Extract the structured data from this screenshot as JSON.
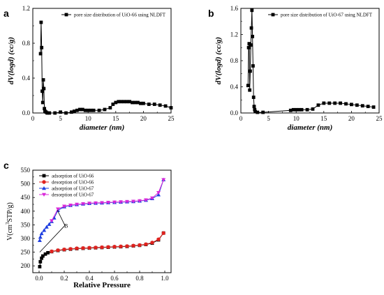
{
  "panels": {
    "a": {
      "letter": "a"
    },
    "b": {
      "letter": "b"
    },
    "c": {
      "letter": "c"
    }
  },
  "chart_data": [
    {
      "panel": "a",
      "type": "line",
      "xlabel": "diameter (nm)",
      "ylabel": "dV(logd) (cc/g)",
      "xlim": [
        0,
        25
      ],
      "ylim": [
        0,
        1.2
      ],
      "xticks": [
        0,
        5,
        10,
        15,
        20,
        25
      ],
      "yticks": [
        0.0,
        0.4,
        0.8,
        1.2
      ],
      "xtick_labels": [
        "0",
        "5",
        "10",
        "15",
        "20",
        "25"
      ],
      "ytick_labels": [
        "0.0",
        "0.4",
        "0.8",
        "1.2"
      ],
      "legend_position": "top-right",
      "series": [
        {
          "name": "pore size distribution of UiO-66 using NLDFT",
          "marker": "square",
          "color": "#000000",
          "x": [
            1.4,
            1.5,
            1.6,
            1.7,
            1.8,
            1.9,
            2.0,
            2.1,
            2.2,
            2.4,
            2.6,
            3.0,
            4.0,
            5.0,
            6.0,
            7.0,
            7.5,
            8.0,
            8.5,
            9.0,
            9.5,
            10.0,
            10.5,
            11.0,
            12.0,
            13.0,
            14.0,
            14.5,
            15.0,
            15.5,
            16.0,
            16.5,
            17.0,
            17.5,
            18.0,
            18.5,
            19.0,
            19.5,
            20.0,
            21.0,
            22.0,
            23.0,
            24.0,
            25.0
          ],
          "values": [
            0.68,
            1.04,
            0.75,
            0.25,
            0.12,
            0.38,
            0.28,
            0.05,
            0.02,
            0.01,
            0.0,
            0.0,
            0.0,
            0.01,
            0.0,
            0.01,
            0.02,
            0.03,
            0.04,
            0.04,
            0.03,
            0.03,
            0.03,
            0.03,
            0.03,
            0.04,
            0.06,
            0.1,
            0.12,
            0.13,
            0.13,
            0.13,
            0.13,
            0.13,
            0.12,
            0.12,
            0.12,
            0.11,
            0.11,
            0.1,
            0.1,
            0.09,
            0.08,
            0.06
          ]
        }
      ]
    },
    {
      "panel": "b",
      "type": "line",
      "xlabel": "diameter (nm)",
      "ylabel": "dV(logd) (cc/g)",
      "xlim": [
        0,
        25
      ],
      "ylim": [
        0,
        1.6
      ],
      "xticks": [
        0,
        5,
        10,
        15,
        20,
        25
      ],
      "yticks": [
        0.0,
        0.4,
        0.8,
        1.2,
        1.6
      ],
      "xtick_labels": [
        "0",
        "5",
        "10",
        "15",
        "20",
        "25"
      ],
      "ytick_labels": [
        "0.0",
        "0.4",
        "0.8",
        "1.2",
        "1.6"
      ],
      "legend_position": "top-right",
      "series": [
        {
          "name": "pore size distribution of UiO-67 using NLDFT",
          "marker": "square",
          "color": "#000000",
          "x": [
            1.3,
            1.4,
            1.5,
            1.6,
            1.7,
            1.8,
            1.9,
            2.0,
            2.1,
            2.2,
            2.3,
            2.4,
            2.5,
            2.6,
            3.0,
            4.0,
            9.0,
            9.5,
            10.0,
            10.5,
            11.0,
            12.0,
            13.0,
            14.0,
            15.0,
            16.0,
            17.0,
            18.0,
            19.0,
            20.0,
            21.0,
            22.0,
            23.0,
            24.0
          ],
          "values": [
            0.42,
            1.0,
            1.06,
            0.35,
            0.64,
            1.04,
            1.3,
            1.57,
            1.17,
            0.72,
            0.24,
            0.1,
            0.05,
            0.02,
            0.01,
            0.01,
            0.04,
            0.05,
            0.05,
            0.05,
            0.05,
            0.05,
            0.06,
            0.12,
            0.15,
            0.15,
            0.15,
            0.15,
            0.14,
            0.13,
            0.12,
            0.11,
            0.1,
            0.09
          ]
        }
      ]
    },
    {
      "panel": "c",
      "type": "line",
      "xlabel": "Relative Pressure",
      "ylabel": "V(cm³STP/g)",
      "ylabel_parts": [
        "V(cm",
        "3",
        "STP/g)"
      ],
      "xlim": [
        -0.05,
        1.05
      ],
      "ylim": [
        175,
        550
      ],
      "xticks": [
        0.0,
        0.2,
        0.4,
        0.6,
        0.8,
        1.0
      ],
      "yticks": [
        200,
        250,
        300,
        350,
        400,
        450,
        500,
        550
      ],
      "xtick_labels": [
        "0.0",
        "0.2",
        "0.4",
        "0.6",
        "0.8",
        "1.0"
      ],
      "ytick_labels": [
        "200",
        "250",
        "300",
        "350",
        "400",
        "450",
        "500",
        "550"
      ],
      "legend_position": "top-left",
      "annotations": [
        {
          "text": "B",
          "at": [
            0.2,
            340
          ]
        }
      ],
      "series": [
        {
          "name": "adsorption of UiO-66",
          "marker": "square",
          "color": "#000000",
          "x": [
            0.005,
            0.01,
            0.02,
            0.03,
            0.05,
            0.07,
            0.1,
            0.15,
            0.2,
            0.25,
            0.3,
            0.35,
            0.4,
            0.45,
            0.5,
            0.55,
            0.6,
            0.65,
            0.7,
            0.75,
            0.8,
            0.85,
            0.9,
            0.95,
            0.99
          ],
          "values": [
            197,
            215,
            228,
            236,
            243,
            248,
            252,
            256,
            259,
            261,
            263,
            264,
            265,
            266,
            267,
            268,
            269,
            270,
            271,
            273,
            275,
            278,
            283,
            295,
            320
          ]
        },
        {
          "name": "desorption of UiO-66",
          "marker": "circle",
          "color": "#e0221e",
          "x": [
            0.99,
            0.95,
            0.9,
            0.85,
            0.8,
            0.75,
            0.7,
            0.65,
            0.6,
            0.55,
            0.5,
            0.45,
            0.4,
            0.35,
            0.3,
            0.25,
            0.2,
            0.15,
            0.1
          ],
          "values": [
            320,
            297,
            285,
            279,
            276,
            274,
            272,
            271,
            270,
            269,
            268,
            267,
            266,
            265,
            264,
            262,
            260,
            257,
            253
          ]
        },
        {
          "name": "adsorption of UiO-67",
          "marker": "triangle-up",
          "color": "#1f3fe0",
          "x": [
            0.005,
            0.01,
            0.02,
            0.04,
            0.06,
            0.08,
            0.1,
            0.12,
            0.15,
            0.2,
            0.25,
            0.3,
            0.35,
            0.4,
            0.45,
            0.5,
            0.55,
            0.6,
            0.65,
            0.7,
            0.75,
            0.8,
            0.85,
            0.9,
            0.95,
            0.99
          ],
          "values": [
            293,
            305,
            318,
            330,
            342,
            352,
            362,
            375,
            403,
            416,
            421,
            424,
            426,
            428,
            429,
            430,
            431,
            432,
            433,
            434,
            435,
            437,
            440,
            446,
            460,
            515
          ]
        },
        {
          "name": "desorption of UiO-67",
          "marker": "triangle-down",
          "color": "#d928d9",
          "x": [
            0.99,
            0.95,
            0.9,
            0.85,
            0.8,
            0.75,
            0.7,
            0.65,
            0.6,
            0.55,
            0.5,
            0.45,
            0.4,
            0.35,
            0.3,
            0.25,
            0.2,
            0.15,
            0.1
          ],
          "values": [
            515,
            468,
            448,
            441,
            438,
            436,
            435,
            434,
            433,
            432,
            431,
            430,
            429,
            427,
            425,
            422,
            418,
            408,
            365
          ]
        }
      ]
    }
  ]
}
